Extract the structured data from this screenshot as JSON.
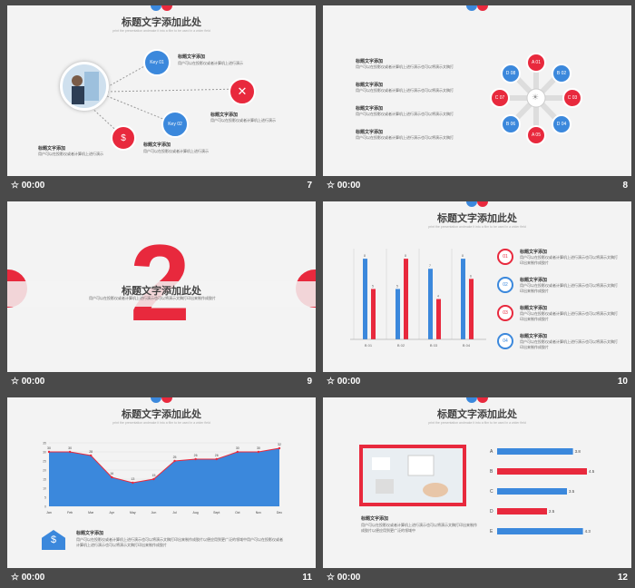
{
  "colors": {
    "blue": "#3b88dc",
    "red": "#e8293d",
    "background": "#4a4a4a",
    "slide": "#f3f3f3"
  },
  "slides": [
    {
      "title": "标题文字添加此处",
      "subtitle": "print the presentation andmake it into a film to be used in a wider field",
      "time": "00:00",
      "number": "7",
      "items": [
        {
          "key": "Key 01",
          "head": "标题文字添加",
          "body": "用户可以在投影仪或者计算机上进行演示"
        },
        {
          "head": "标题文字添加",
          "body": "用户可以在投影仪或者计算机上进行演示"
        },
        {
          "key": "Key 02",
          "head": "标题文字添加",
          "body": "用户可以在投影仪或者计算机上进行演示"
        },
        {
          "head": "标题文字添加",
          "body": "用户可以在投影仪或者计算机上进行演示"
        }
      ]
    },
    {
      "time": "00:00",
      "number": "8",
      "items": [
        {
          "head": "标题文字添加",
          "body": "用户可以在投影仪或者计算机上进行演示也可以将演示文稿打"
        },
        {
          "head": "标题文字添加",
          "body": "用户可以在投影仪或者计算机上进行演示也可以将演示文稿打"
        },
        {
          "head": "标题文字添加",
          "body": "用户可以在投影仪或者计算机上进行演示也可以将演示文稿打"
        },
        {
          "head": "标题文字添加",
          "body": "用户可以在投影仪或者计算机上进行演示也可以将演示文稿打"
        }
      ],
      "petals": [
        "A 01",
        "B 02",
        "C 03",
        "D 04",
        "A 05",
        "B 06",
        "C 07",
        "D 08"
      ]
    },
    {
      "title": "标题文字添加此处",
      "body": "用户可以在投影仪或者计算机上进行演示也可以将演示文稿打印出来制作成胶片",
      "big": "2",
      "time": "00:00",
      "number": "9"
    },
    {
      "title": "标题文字添加此处",
      "subtitle": "print the presentation andmake it into a film to be used in a wider field",
      "time": "00:00",
      "number": "10",
      "bars": {
        "labels": [
          "B 01",
          "B 02",
          "B 03",
          "B 04"
        ],
        "blue": [
          8,
          5,
          7,
          8
        ],
        "red": [
          5,
          8,
          4,
          6
        ],
        "blue_labels": [
          "8",
          "5",
          "7",
          "8"
        ],
        "red_labels": [
          "5",
          "8",
          "4",
          "6"
        ]
      },
      "items": [
        {
          "n": "01",
          "head": "标题文字添加",
          "body": "用户可以在投影仪或者计算机上进行演示也可以将演示文稿打印出来制作成胶片"
        },
        {
          "n": "02",
          "head": "标题文字添加",
          "body": "用户可以在投影仪或者计算机上进行演示也可以将演示文稿打印出来制作成胶片"
        },
        {
          "n": "03",
          "head": "标题文字添加",
          "body": "用户可以在投影仪或者计算机上进行演示也可以将演示文稿打印出来制作成胶片"
        },
        {
          "n": "04",
          "head": "标题文字添加",
          "body": "用户可以在投影仪或者计算机上进行演示也可以将演示文稿打印出来制作成胶片"
        }
      ]
    },
    {
      "title": "标题文字添加此处",
      "subtitle": "print the presentation andmake it into a film to be used in a wider field",
      "time": "00:00",
      "number": "11",
      "head": "标题文字添加",
      "body": "用户可以在投影仪或者计算机上进行演示也可以将演示文稿打印出来制作成胶片以便应用到更广泛的领域中用户可以在投影仪或者计算机上进行演示也可以将演示文稿打印出来制作成胶片"
    },
    {
      "title": "标题文字添加此处",
      "subtitle": "print the presentation andmake it into a film to be used in a wider field",
      "time": "00:00",
      "number": "12",
      "head": "标题文字添加",
      "body": "用户可以在投影仪或者计算机上进行演示也可以将演示文稿打印出来制作成胶片以便应用到更广泛的领域中",
      "bar_labels": [
        "A",
        "B",
        "C",
        "D",
        "E"
      ],
      "bar_values": [
        "3.8",
        "4.5",
        "3.5",
        "2.5",
        "4.3"
      ]
    }
  ],
  "chart_data": [
    {
      "type": "bar",
      "categories": [
        "B 01",
        "B 02",
        "B 03",
        "B 04"
      ],
      "series": [
        {
          "values": [
            8,
            5,
            7,
            8
          ]
        },
        {
          "values": [
            5,
            8,
            4,
            6
          ]
        }
      ],
      "ylim": [
        0,
        9
      ]
    },
    {
      "type": "area",
      "categories": [
        "Jan",
        "Feb",
        "Mar",
        "Apr",
        "May",
        "Jun",
        "Jul",
        "Aug",
        "Sept",
        "Oct",
        "Nov",
        "Dec"
      ],
      "values": [
        30,
        30,
        28,
        16,
        13,
        15,
        25,
        26,
        26,
        30,
        30,
        32
      ],
      "ylim": [
        0,
        35
      ],
      "yticks": [
        "0",
        "5",
        "10",
        "15",
        "20",
        "25",
        "30",
        "35"
      ]
    },
    {
      "type": "bar",
      "categories": [
        "A",
        "B",
        "C",
        "D",
        "E"
      ],
      "values": [
        3.8,
        4.5,
        3.5,
        2.5,
        4.3
      ],
      "orientation": "horizontal"
    }
  ]
}
